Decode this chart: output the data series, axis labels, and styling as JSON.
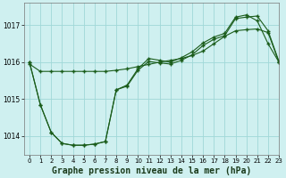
{
  "title": "Graphe pression niveau de la mer (hPa)",
  "bg_color": "#cff0f0",
  "grid_color": "#a0d8d8",
  "line_color": "#1a5c1a",
  "xlim": [
    -0.5,
    23
  ],
  "ylim": [
    1013.5,
    1017.6
  ],
  "yticks": [
    1014,
    1015,
    1016,
    1017
  ],
  "xticks": [
    0,
    1,
    2,
    3,
    4,
    5,
    6,
    7,
    8,
    9,
    10,
    11,
    12,
    13,
    14,
    15,
    16,
    17,
    18,
    19,
    20,
    21,
    22,
    23
  ],
  "series1_x": [
    0,
    1,
    2,
    3,
    4,
    5,
    6,
    7,
    8,
    9,
    10,
    11,
    12,
    13,
    14,
    15,
    16,
    17,
    18,
    19,
    20,
    21,
    22,
    23
  ],
  "series1_y": [
    1015.95,
    1015.75,
    1015.75,
    1015.75,
    1015.75,
    1015.75,
    1015.75,
    1015.75,
    1015.78,
    1015.82,
    1015.88,
    1015.94,
    1016.0,
    1016.05,
    1016.1,
    1016.18,
    1016.3,
    1016.5,
    1016.7,
    1016.85,
    1016.88,
    1016.9,
    1016.8,
    1016.0
  ],
  "series2_x": [
    0,
    1,
    2,
    3,
    4,
    5,
    6,
    7,
    8,
    9,
    10,
    11,
    12,
    13,
    14,
    15,
    16,
    17,
    18,
    19,
    20,
    21,
    22,
    23
  ],
  "series2_y": [
    1016.0,
    1014.85,
    1014.1,
    1013.8,
    1013.75,
    1013.75,
    1013.78,
    1013.85,
    1015.25,
    1015.35,
    1015.78,
    1016.02,
    1015.98,
    1015.95,
    1016.05,
    1016.2,
    1016.45,
    1016.62,
    1016.72,
    1017.18,
    1017.22,
    1017.25,
    1016.85,
    1016.02
  ],
  "series3_x": [
    0,
    1,
    2,
    3,
    4,
    5,
    6,
    7,
    8,
    9,
    10,
    11,
    12,
    13,
    14,
    15,
    16,
    17,
    18,
    19,
    20,
    21,
    22,
    23
  ],
  "series3_y": [
    1016.0,
    1014.85,
    1014.1,
    1013.8,
    1013.75,
    1013.75,
    1013.78,
    1013.85,
    1015.25,
    1015.38,
    1015.82,
    1016.1,
    1016.05,
    1016.0,
    1016.12,
    1016.28,
    1016.52,
    1016.68,
    1016.78,
    1017.22,
    1017.28,
    1017.12,
    1016.5,
    1016.0
  ]
}
